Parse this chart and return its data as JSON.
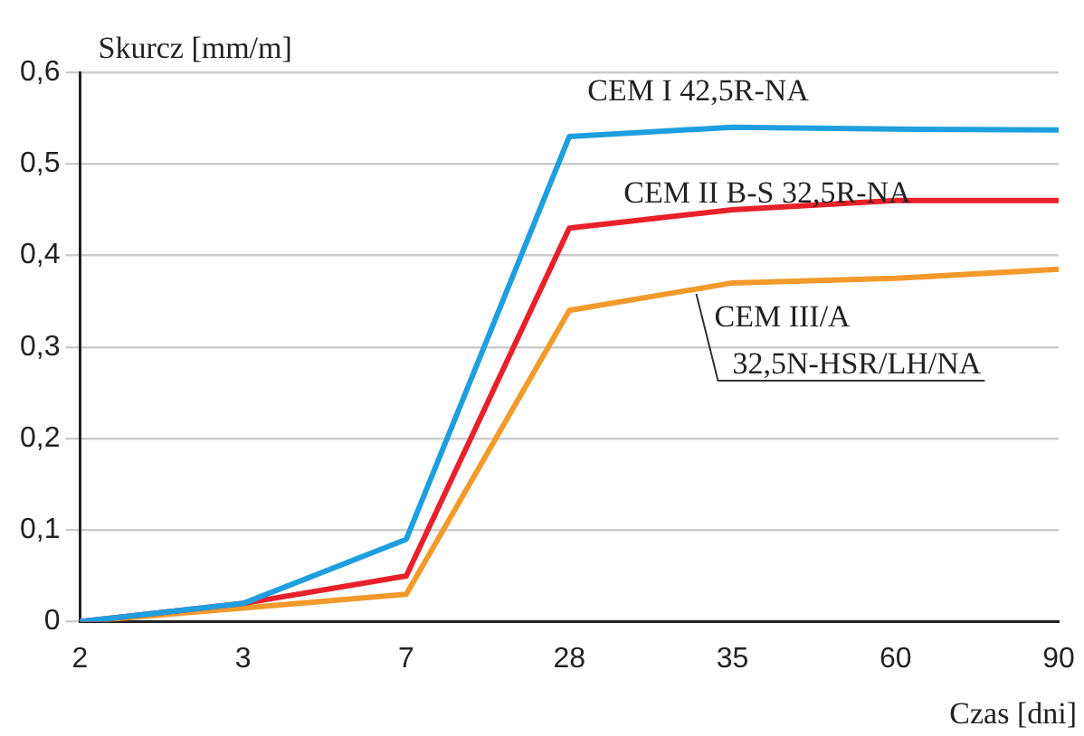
{
  "chart_data": {
    "type": "line",
    "ylabel": "Skurcz [mm/m]",
    "xlabel": "Czas [dni]",
    "categories": [
      "2",
      "3",
      "7",
      "28",
      "35",
      "60",
      "90"
    ],
    "ylim": [
      0,
      0.6
    ],
    "yticks": [
      {
        "value": 0,
        "label": "0"
      },
      {
        "value": 0.1,
        "label": "0,1"
      },
      {
        "value": 0.2,
        "label": "0,2"
      },
      {
        "value": 0.3,
        "label": "0,3"
      },
      {
        "value": 0.4,
        "label": "0,4"
      },
      {
        "value": 0.5,
        "label": "0,5"
      },
      {
        "value": 0.6,
        "label": "0,6"
      }
    ],
    "grid": "y",
    "legend": false,
    "marker": "none",
    "line_style": "solid",
    "series": [
      {
        "name": "CEM I 42,5R-NA",
        "color": "#1e9fe0",
        "values": [
          0,
          0.02,
          0.09,
          0.53,
          0.54,
          0.538,
          0.537
        ]
      },
      {
        "name": "CEM II B-S 32,5R-NA",
        "color": "#e8202a",
        "values": [
          0,
          0.02,
          0.05,
          0.43,
          0.45,
          0.46,
          0.46
        ]
      },
      {
        "name": "CEM III/A 32,5N-HSR/LH/NA",
        "color": "#f39a2b",
        "values": [
          0,
          0.015,
          0.03,
          0.34,
          0.37,
          0.375,
          0.385
        ]
      }
    ]
  }
}
